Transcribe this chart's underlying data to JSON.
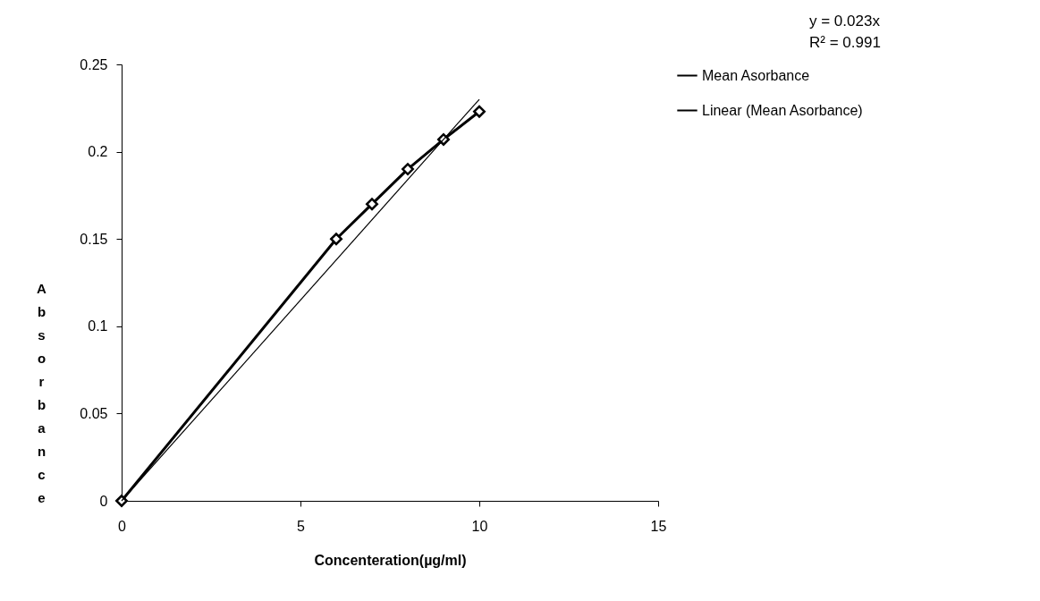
{
  "chart_data": {
    "type": "line",
    "xlabel": "Concenteration(µg/ml)",
    "ylabel": "Absorbance",
    "xlim": [
      0,
      15
    ],
    "xticks": [
      0,
      5,
      10,
      15
    ],
    "ylim": [
      0,
      0.25
    ],
    "yticks": [
      0,
      0.05,
      0.1,
      0.15,
      0.2,
      0.25
    ],
    "grid": false,
    "legend": "right",
    "annotations": [
      "y = 0.023x",
      "R² = 0.991"
    ],
    "series": [
      {
        "name": "Mean Asorbance",
        "color": "#000000",
        "marker": "diamond",
        "x": [
          0,
          6,
          7,
          8,
          9,
          10
        ],
        "values": [
          0,
          0.15,
          0.17,
          0.19,
          0.207,
          0.223
        ]
      },
      {
        "name": "Linear (Mean Asorbance)",
        "color": "#000000",
        "type": "line",
        "marker": "none",
        "x": [
          0,
          10
        ],
        "values": [
          0,
          0.23
        ]
      }
    ]
  }
}
